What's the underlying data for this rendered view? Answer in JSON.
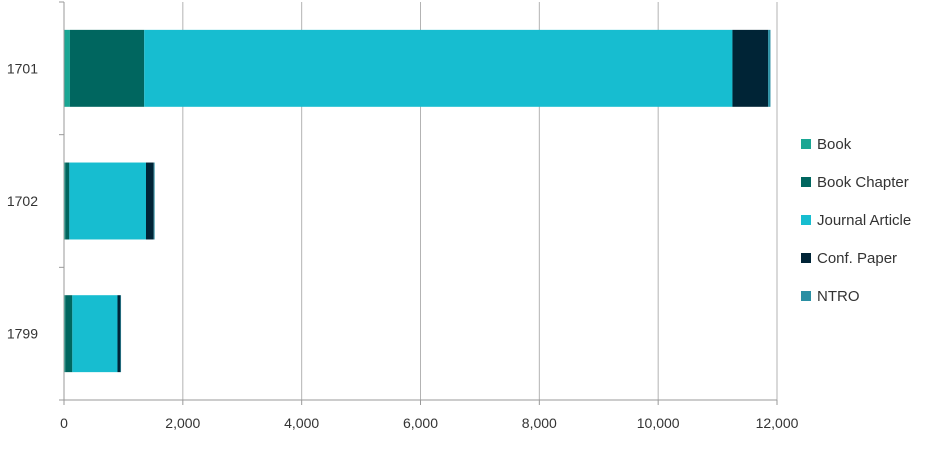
{
  "chart_data": {
    "type": "bar",
    "orientation": "horizontal",
    "stacked": true,
    "title": "",
    "xlabel": "",
    "ylabel": "",
    "categories": [
      "1701",
      "1702",
      "1799"
    ],
    "xlim": [
      0,
      12000
    ],
    "x_ticks": [
      0,
      2000,
      4000,
      6000,
      8000,
      10000,
      12000
    ],
    "x_tick_labels": [
      "0",
      "2,000",
      "4,000",
      "6,000",
      "8,000",
      "10,000",
      "12,000"
    ],
    "grid": "vertical",
    "legend_position": "right",
    "series": [
      {
        "name": "Book",
        "color": "#1AA693",
        "values": [
          100,
          20,
          20
        ]
      },
      {
        "name": "Book Chapter",
        "color": "#00665F",
        "values": [
          1250,
          70,
          120
        ]
      },
      {
        "name": "Journal Article",
        "color": "#17BDD0",
        "values": [
          9900,
          1290,
          760
        ]
      },
      {
        "name": "Conf. Paper",
        "color": "#002436",
        "values": [
          600,
          130,
          50
        ]
      },
      {
        "name": "NTRO",
        "color": "#2A8FA3",
        "values": [
          40,
          15,
          10
        ]
      }
    ]
  }
}
